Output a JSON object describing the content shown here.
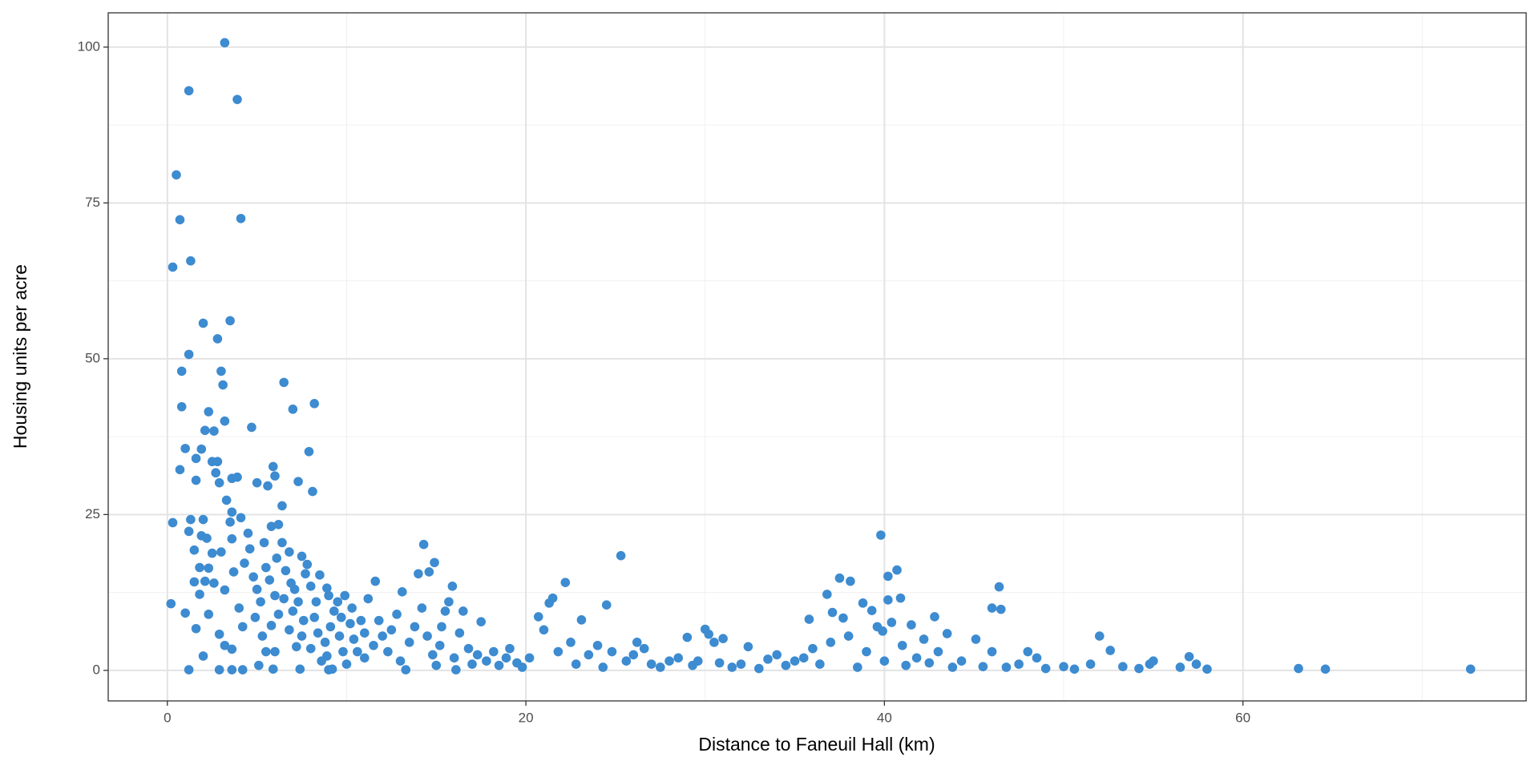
{
  "chart_data": {
    "type": "scatter",
    "x_label": "Distance to Faneuil Hall (km)",
    "y_label": "Housing units per acre",
    "color": "#3d8bd0",
    "grid": true,
    "xlim": [
      -3.3,
      75.8
    ],
    "xticks": [
      0,
      20,
      40,
      60
    ],
    "ylim": [
      -4.9,
      105.5
    ],
    "yticks": [
      0,
      25,
      50,
      75,
      100
    ],
    "x": [
      3.2,
      1.2,
      3.9,
      0.5,
      0.7,
      4.1,
      0.3,
      1.3,
      3.5,
      2.0,
      2.8,
      1.2,
      0.8,
      3.0,
      3.1,
      6.5,
      8.2,
      7.0,
      0.8,
      2.3,
      3.2,
      4.7,
      2.1,
      2.6,
      1.0,
      1.9,
      7.9,
      1.6,
      2.5,
      2.8,
      5.9,
      0.7,
      2.7,
      6.0,
      3.6,
      3.9,
      5.0,
      5.6,
      7.3,
      8.1,
      1.6,
      2.9,
      6.4,
      3.3,
      3.6,
      4.1,
      0.3,
      1.3,
      2.0,
      5.8,
      6.2,
      1.2,
      1.9,
      4.5,
      3.6,
      5.4,
      2.2,
      1.5,
      2.5,
      1.8,
      2.3,
      1.5,
      2.1,
      2.6,
      1.8,
      2.3,
      1.0,
      0.2,
      1.6,
      2.0,
      1.2,
      2.9,
      3.6,
      4.2,
      2.9,
      3.2,
      3.6,
      4.2,
      4.0,
      3.2,
      3.7,
      4.3,
      3.0,
      3.5,
      4.6,
      4.8,
      5.0,
      5.2,
      4.9,
      5.3,
      5.5,
      5.1,
      5.9,
      6.0,
      5.8,
      6.2,
      6.0,
      5.7,
      5.5,
      6.1,
      6.4,
      6.8,
      6.6,
      6.9,
      6.5,
      7.0,
      6.8,
      7.2,
      7.4,
      7.5,
      7.6,
      7.3,
      7.1,
      7.7,
      7.8,
      7.5,
      8.0,
      8.3,
      8.5,
      8.2,
      8.4,
      8.0,
      8.6,
      8.9,
      9.0,
      9.2,
      8.8,
      9.1,
      9.3,
      9.0,
      8.9,
      9.5,
      9.7,
      9.6,
      9.8,
      10.0,
      9.9,
      10.2,
      10.4,
      10.3,
      10.6,
      10.8,
      11.0,
      11.2,
      11.5,
      11.0,
      11.6,
      11.8,
      12.0,
      12.3,
      12.5,
      12.8,
      13.1,
      13.0,
      13.3,
      13.5,
      13.8,
      14.0,
      14.3,
      14.6,
      14.9,
      14.2,
      14.5,
      14.8,
      15.0,
      15.2,
      15.5,
      15.9,
      15.7,
      15.3,
      16.0,
      16.3,
      16.5,
      16.1,
      16.8,
      17.0,
      17.5,
      17.3,
      17.8,
      18.2,
      18.5,
      18.9,
      19.1,
      19.5,
      19.8,
      20.2,
      20.7,
      21.0,
      21.3,
      21.5,
      21.8,
      22.2,
      22.5,
      22.8,
      23.1,
      23.5,
      24.0,
      24.5,
      24.3,
      24.8,
      25.3,
      25.6,
      26.0,
      26.2,
      26.6,
      27.0,
      27.5,
      28.0,
      28.5,
      29.0,
      29.3,
      29.6,
      30.0,
      30.2,
      30.5,
      31.0,
      30.8,
      31.5,
      32.0,
      32.4,
      33.0,
      33.5,
      34.0,
      34.5,
      35.0,
      35.5,
      35.8,
      36.0,
      36.4,
      36.8,
      37.1,
      37.0,
      37.5,
      37.7,
      38.1,
      38.0,
      38.5,
      38.8,
      39.0,
      39.3,
      39.6,
      39.8,
      39.9,
      40.2,
      40.2,
      40.4,
      40.0,
      40.7,
      40.9,
      41.0,
      41.2,
      41.5,
      41.8,
      42.2,
      42.5,
      42.8,
      43.0,
      43.5,
      43.8,
      44.3,
      45.1,
      45.5,
      46.0,
      46.0,
      46.4,
      46.5,
      46.8,
      47.5,
      48.0,
      48.5,
      49.0,
      50.0,
      50.6,
      51.5,
      52.0,
      52.6,
      53.3,
      54.2,
      54.8,
      55.0,
      56.5,
      57.0,
      57.4,
      58.0,
      63.1,
      64.6,
      72.7
    ],
    "values": [
      100.7,
      93.0,
      91.6,
      79.5,
      72.3,
      72.5,
      64.7,
      65.7,
      56.1,
      55.7,
      53.2,
      50.7,
      48.0,
      48.0,
      45.8,
      46.2,
      42.8,
      41.9,
      42.3,
      41.5,
      40.0,
      39.0,
      38.5,
      38.4,
      35.6,
      35.5,
      35.1,
      34.0,
      33.5,
      33.5,
      32.7,
      32.2,
      31.7,
      31.2,
      30.8,
      31.0,
      30.1,
      29.6,
      30.3,
      28.7,
      30.5,
      30.1,
      26.4,
      27.3,
      25.4,
      24.5,
      23.7,
      24.2,
      24.2,
      23.1,
      23.4,
      22.3,
      21.6,
      22.0,
      21.1,
      20.5,
      21.2,
      19.3,
      18.8,
      16.5,
      16.4,
      14.2,
      14.3,
      14.0,
      12.2,
      9.0,
      9.2,
      10.7,
      6.7,
      2.3,
      0.1,
      0.1,
      0.1,
      0.1,
      5.8,
      4.0,
      3.4,
      7.0,
      10.0,
      12.9,
      15.8,
      17.2,
      19.0,
      23.8,
      19.5,
      15.0,
      13.0,
      11.0,
      8.5,
      5.5,
      3.0,
      0.8,
      0.2,
      3.0,
      7.2,
      9.0,
      12.0,
      14.5,
      16.5,
      18.0,
      20.5,
      19.0,
      16.0,
      14.0,
      11.5,
      9.5,
      6.5,
      3.8,
      0.2,
      5.5,
      8.0,
      11.0,
      13.0,
      15.5,
      17.0,
      18.3,
      13.5,
      11.0,
      15.3,
      8.5,
      6.0,
      3.5,
      1.5,
      2.3,
      0.1,
      0.2,
      4.5,
      7.0,
      9.5,
      12.0,
      13.2,
      11.0,
      8.5,
      5.5,
      3.0,
      1.0,
      12.0,
      7.5,
      5.0,
      10.0,
      3.0,
      8.0,
      6.0,
      11.5,
      4.0,
      2.0,
      14.3,
      8.0,
      5.5,
      3.0,
      6.5,
      9.0,
      12.6,
      1.5,
      0.1,
      4.5,
      7.0,
      15.5,
      20.2,
      15.8,
      17.3,
      10.0,
      5.5,
      2.5,
      0.8,
      4.0,
      9.5,
      13.5,
      11.0,
      7.0,
      2.0,
      6.0,
      9.5,
      0.1,
      3.5,
      1.0,
      7.8,
      2.5,
      1.5,
      3.0,
      0.8,
      2.0,
      3.5,
      1.2,
      0.5,
      2.0,
      8.6,
      6.5,
      10.8,
      11.6,
      3.0,
      14.1,
      4.5,
      1.0,
      8.1,
      2.5,
      4.0,
      10.5,
      0.5,
      3.0,
      18.4,
      1.5,
      2.5,
      4.5,
      3.5,
      1.0,
      0.5,
      1.5,
      2.0,
      5.3,
      0.8,
      1.5,
      6.6,
      5.8,
      4.5,
      5.1,
      1.2,
      0.5,
      1.0,
      3.8,
      0.3,
      1.8,
      2.5,
      0.8,
      1.5,
      2.0,
      8.2,
      3.5,
      1.0,
      12.2,
      9.3,
      4.5,
      14.8,
      8.4,
      14.3,
      5.5,
      0.5,
      10.8,
      3.0,
      9.6,
      7.0,
      21.7,
      6.3,
      15.1,
      11.3,
      7.7,
      1.5,
      16.1,
      11.6,
      4.0,
      0.8,
      7.3,
      2.0,
      5.0,
      1.2,
      8.6,
      3.0,
      5.9,
      0.5,
      1.5,
      5.0,
      0.6,
      10.0,
      3.0,
      13.4,
      9.8,
      0.5,
      1.0,
      3.0,
      2.0,
      0.3,
      0.6,
      0.2,
      1.0,
      5.5,
      3.2,
      0.6,
      0.3,
      1.0,
      1.5,
      0.5,
      2.2,
      1.0,
      0.2,
      0.3,
      0.2,
      0.2
    ]
  }
}
